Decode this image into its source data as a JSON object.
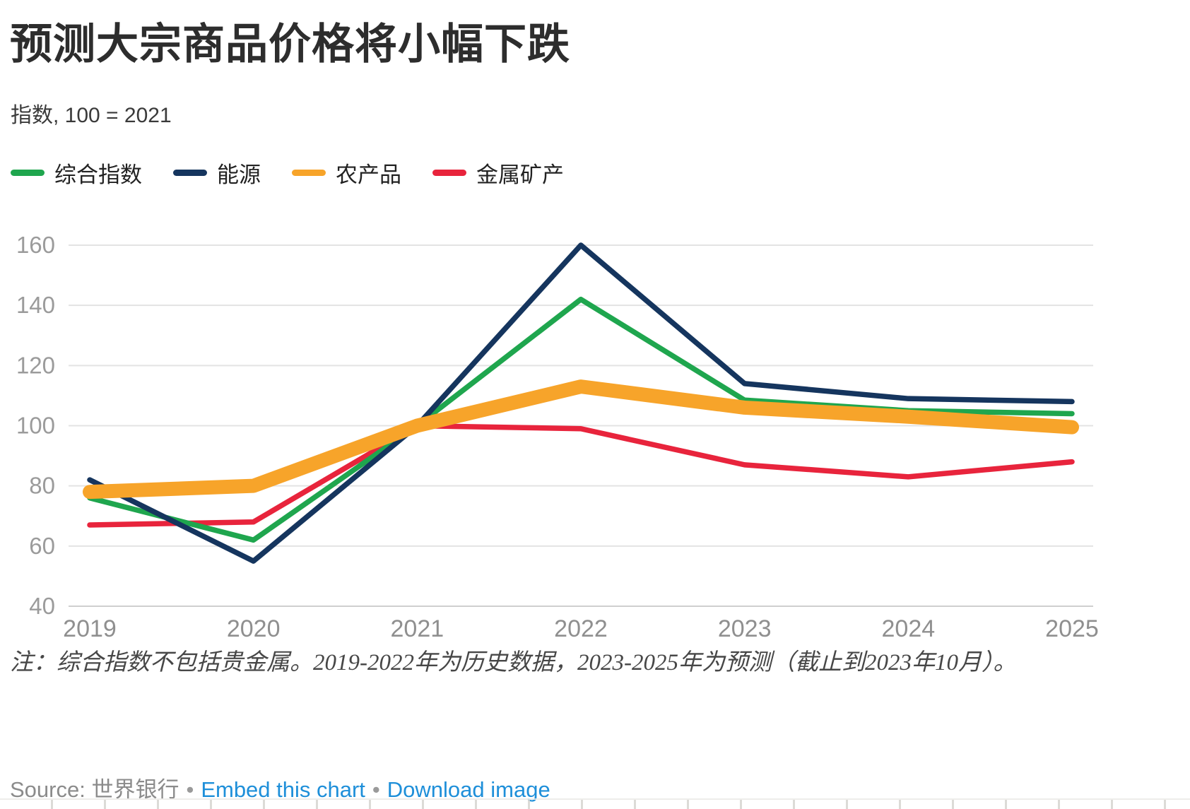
{
  "header": {
    "title": "预测大宗商品价格将小幅下跌",
    "subtitle": "指数, 100 = 2021"
  },
  "legend": [
    {
      "key": "composite",
      "label": "综合指数",
      "color": "#1fa64e"
    },
    {
      "key": "energy",
      "label": "能源",
      "color": "#15355e"
    },
    {
      "key": "agriculture",
      "label": "农产品",
      "color": "#f7a42a"
    },
    {
      "key": "metals",
      "label": "金属矿产",
      "color": "#e8243c"
    }
  ],
  "chart_data": {
    "type": "line",
    "title": "预测大宗商品价格将小幅下跌",
    "subtitle": "指数, 100 = 2021",
    "x": [
      2019,
      2020,
      2021,
      2022,
      2023,
      2024,
      2025
    ],
    "series": [
      {
        "key": "composite",
        "name": "综合指数",
        "color": "#1fa64e",
        "stroke_width": 7.5,
        "values": [
          76,
          62,
          100,
          142,
          108.5,
          105,
          104
        ]
      },
      {
        "key": "energy",
        "name": "能源",
        "color": "#15355e",
        "stroke_width": 7.5,
        "values": [
          82,
          55,
          100,
          160,
          114,
          109,
          108
        ]
      },
      {
        "key": "agriculture",
        "name": "农产品",
        "color": "#f7a42a",
        "stroke_width": 20,
        "values": [
          78,
          80,
          100,
          113,
          106,
          103,
          99.5
        ]
      },
      {
        "key": "metals",
        "name": "金属矿产",
        "color": "#e8243c",
        "stroke_width": 7.5,
        "values": [
          67,
          68,
          100,
          99,
          87,
          83,
          88
        ]
      }
    ],
    "ylim": [
      40,
      160
    ],
    "yticks": [
      40,
      60,
      80,
      100,
      120,
      140,
      160
    ],
    "xticks": [
      2019,
      2020,
      2021,
      2022,
      2023,
      2024,
      2025
    ],
    "grid": "horizontal",
    "legend_position": "top"
  },
  "note": {
    "text": "注：综合指数不包括贵金属。2019-2022年为历史数据，2023-2025年为预测（截止到2023年10月）。"
  },
  "source": {
    "prefix": "Source: ",
    "name": "世界银行",
    "separator": "•",
    "embed_link": "Embed this chart",
    "download_link": "Download image"
  },
  "colors": {
    "grid_line": "#e3e3e3",
    "axis_line": "#cfcfcf",
    "tick_label": "#9b9b9b",
    "year_label": "#8f8f8f",
    "link": "#1e8fd9"
  }
}
